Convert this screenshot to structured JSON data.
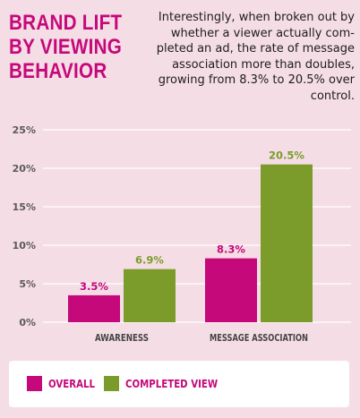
{
  "header": {
    "title": "BRAND LIFT\nBY VIEWING\nBEHAVIOR",
    "description": "Interestingly, when broken out by\nwhether a viewer actually com-\npleted an ad, the rate of message\nassociation more than doubles,\ngrowing from 8.3% to 20.5% over\ncontrol."
  },
  "colors": {
    "background": "#f5dde6",
    "title": "#c5087a",
    "overall": "#c5087a",
    "completed": "#7b9c2a",
    "grid": "#ffffff"
  },
  "chart_data": {
    "type": "bar",
    "categories": [
      "AWARENESS",
      "MESSAGE ASSOCIATION"
    ],
    "series": [
      {
        "name": "OVERALL",
        "values": [
          3.5,
          8.3
        ],
        "labels": [
          "3.5%",
          "8.3%"
        ],
        "color": "#c5087a"
      },
      {
        "name": "COMPLETED VIEW",
        "values": [
          6.9,
          20.5
        ],
        "labels": [
          "6.9%",
          "20.5%"
        ],
        "color": "#7b9c2a"
      }
    ],
    "ylim": [
      0,
      25
    ],
    "yticks": [
      0,
      5,
      10,
      15,
      20,
      25
    ],
    "ytick_labels": [
      "0%",
      "5%",
      "10%",
      "15%",
      "20%",
      "25%"
    ],
    "grid": true,
    "legend_position": "bottom"
  },
  "legend": {
    "items": [
      {
        "label": "OVERALL",
        "color": "#c5087a"
      },
      {
        "label": "COMPLETED VIEW",
        "color": "#7b9c2a"
      }
    ]
  }
}
